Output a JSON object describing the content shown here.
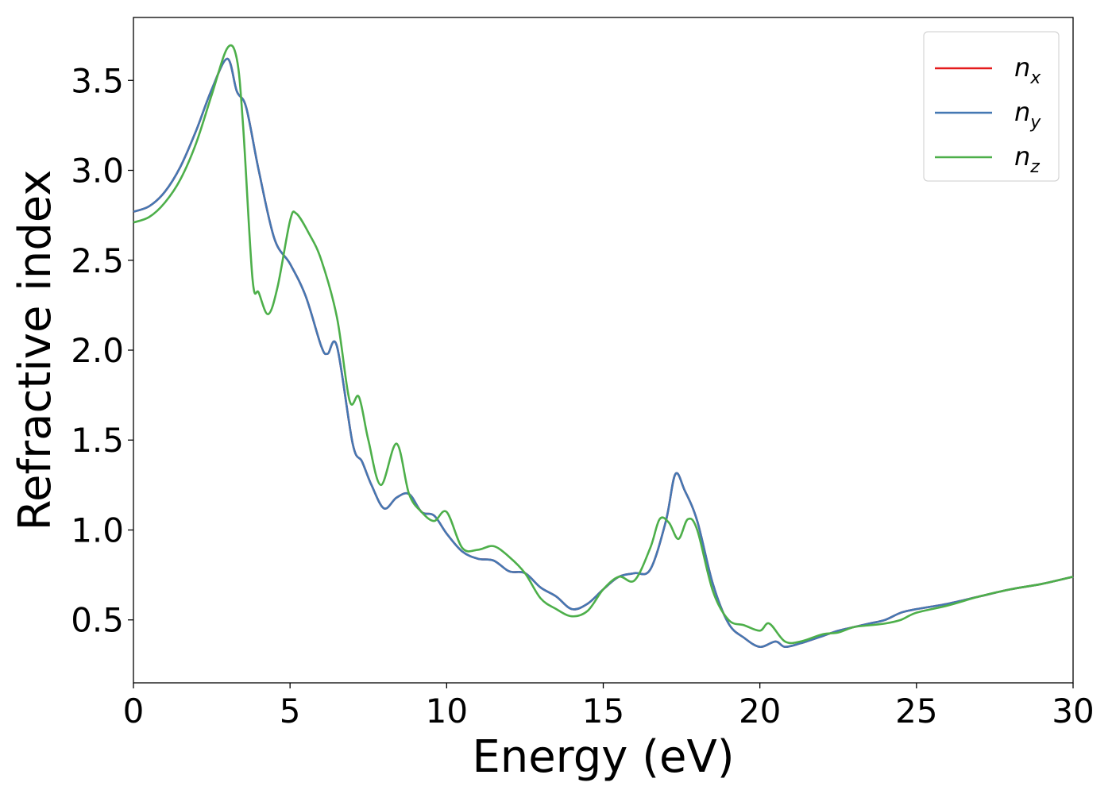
{
  "chart_data": {
    "type": "line",
    "title": "",
    "xlabel": "Energy (eV)",
    "ylabel": "Refractive index",
    "xlim": [
      0,
      30
    ],
    "ylim": [
      0.15,
      3.85
    ],
    "xticks": [
      0,
      5,
      10,
      15,
      20,
      25,
      30
    ],
    "yticks": [
      0.5,
      1.0,
      1.5,
      2.0,
      2.5,
      3.0,
      3.5
    ],
    "xtick_labels": [
      "0",
      "5",
      "10",
      "15",
      "20",
      "25",
      "30"
    ],
    "ytick_labels": [
      "0.5",
      "1.0",
      "1.5",
      "2.0",
      "2.5",
      "3.0",
      "3.5"
    ],
    "grid": false,
    "legend_position": "top-right",
    "series": [
      {
        "name": "n_x",
        "legend_base": "n",
        "legend_sub": "x",
        "color": "#e41a1c",
        "x": [
          0,
          0.5,
          1.0,
          1.5,
          2.0,
          2.5,
          3.0,
          3.3,
          3.6,
          4.0,
          4.5,
          5.0,
          5.5,
          6.0,
          6.2,
          6.5,
          7.0,
          7.3,
          7.6,
          8.0,
          8.4,
          8.8,
          9.2,
          9.6,
          10.0,
          10.5,
          11.0,
          11.5,
          12.0,
          12.5,
          13.0,
          13.5,
          14.0,
          14.5,
          15.0,
          15.5,
          16.0,
          16.5,
          17.0,
          17.3,
          17.6,
          18.0,
          18.5,
          19.0,
          19.5,
          20.0,
          20.5,
          20.8,
          21.3,
          22.0,
          22.5,
          23.0,
          23.5,
          24.0,
          24.5,
          25.0,
          26.0,
          27.0,
          28.0,
          29.0,
          30.0
        ],
        "y": [
          2.77,
          2.8,
          2.88,
          3.02,
          3.22,
          3.45,
          3.62,
          3.44,
          3.35,
          3.0,
          2.62,
          2.48,
          2.3,
          2.02,
          1.98,
          2.02,
          1.48,
          1.38,
          1.25,
          1.12,
          1.18,
          1.2,
          1.1,
          1.08,
          0.98,
          0.88,
          0.84,
          0.83,
          0.77,
          0.76,
          0.68,
          0.63,
          0.56,
          0.59,
          0.67,
          0.74,
          0.76,
          0.78,
          1.05,
          1.31,
          1.22,
          1.05,
          0.7,
          0.48,
          0.4,
          0.35,
          0.38,
          0.35,
          0.37,
          0.41,
          0.44,
          0.46,
          0.48,
          0.5,
          0.54,
          0.56,
          0.59,
          0.63,
          0.67,
          0.7,
          0.74
        ]
      },
      {
        "name": "n_y",
        "legend_base": "n",
        "legend_sub": "y",
        "color": "#4478b3",
        "x": [
          0,
          0.5,
          1.0,
          1.5,
          2.0,
          2.5,
          3.0,
          3.3,
          3.6,
          4.0,
          4.5,
          5.0,
          5.5,
          6.0,
          6.2,
          6.5,
          7.0,
          7.3,
          7.6,
          8.0,
          8.4,
          8.8,
          9.2,
          9.6,
          10.0,
          10.5,
          11.0,
          11.5,
          12.0,
          12.5,
          13.0,
          13.5,
          14.0,
          14.5,
          15.0,
          15.5,
          16.0,
          16.5,
          17.0,
          17.3,
          17.6,
          18.0,
          18.5,
          19.0,
          19.5,
          20.0,
          20.5,
          20.8,
          21.3,
          22.0,
          22.5,
          23.0,
          23.5,
          24.0,
          24.5,
          25.0,
          26.0,
          27.0,
          28.0,
          29.0,
          30.0
        ],
        "y": [
          2.77,
          2.8,
          2.88,
          3.02,
          3.22,
          3.45,
          3.62,
          3.44,
          3.35,
          3.0,
          2.62,
          2.48,
          2.3,
          2.02,
          1.98,
          2.02,
          1.48,
          1.38,
          1.25,
          1.12,
          1.18,
          1.2,
          1.1,
          1.08,
          0.98,
          0.88,
          0.84,
          0.83,
          0.77,
          0.76,
          0.68,
          0.63,
          0.56,
          0.59,
          0.67,
          0.74,
          0.76,
          0.78,
          1.05,
          1.31,
          1.22,
          1.05,
          0.7,
          0.48,
          0.4,
          0.35,
          0.38,
          0.35,
          0.37,
          0.41,
          0.44,
          0.46,
          0.48,
          0.5,
          0.54,
          0.56,
          0.59,
          0.63,
          0.67,
          0.7,
          0.74
        ]
      },
      {
        "name": "n_z",
        "legend_base": "n",
        "legend_sub": "z",
        "color": "#4daf4a",
        "x": [
          0,
          0.5,
          1.0,
          1.5,
          2.0,
          2.5,
          3.0,
          3.3,
          3.5,
          3.8,
          4.0,
          4.3,
          4.6,
          5.0,
          5.2,
          5.6,
          6.0,
          6.5,
          6.9,
          7.2,
          7.5,
          7.9,
          8.4,
          8.8,
          9.2,
          9.6,
          10.0,
          10.5,
          11.0,
          11.5,
          12.0,
          12.5,
          13.0,
          13.5,
          14.0,
          14.5,
          15.0,
          15.5,
          16.0,
          16.5,
          16.8,
          17.1,
          17.4,
          17.7,
          18.0,
          18.5,
          19.0,
          19.5,
          20.0,
          20.3,
          20.8,
          21.3,
          22.0,
          22.5,
          23.0,
          23.5,
          24.0,
          24.5,
          25.0,
          26.0,
          27.0,
          28.0,
          29.0,
          30.0
        ],
        "y": [
          2.71,
          2.74,
          2.82,
          2.95,
          3.15,
          3.42,
          3.68,
          3.62,
          3.25,
          2.4,
          2.32,
          2.2,
          2.35,
          2.72,
          2.76,
          2.65,
          2.5,
          2.18,
          1.72,
          1.74,
          1.5,
          1.25,
          1.48,
          1.2,
          1.1,
          1.05,
          1.1,
          0.9,
          0.89,
          0.91,
          0.85,
          0.76,
          0.62,
          0.56,
          0.52,
          0.55,
          0.67,
          0.74,
          0.72,
          0.9,
          1.06,
          1.04,
          0.95,
          1.06,
          1.0,
          0.66,
          0.5,
          0.47,
          0.44,
          0.48,
          0.38,
          0.38,
          0.42,
          0.43,
          0.46,
          0.47,
          0.48,
          0.5,
          0.54,
          0.58,
          0.63,
          0.67,
          0.7,
          0.74
        ]
      }
    ]
  }
}
